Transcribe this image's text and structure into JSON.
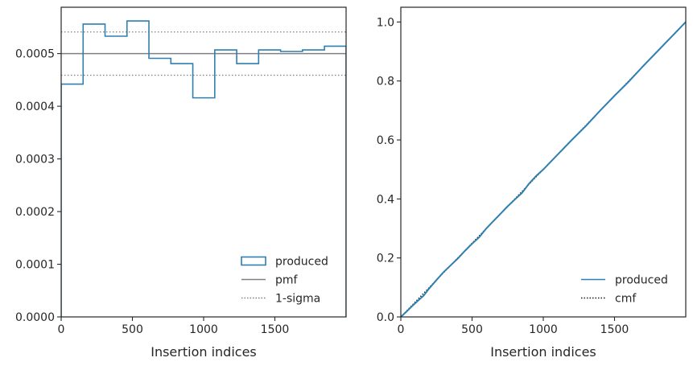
{
  "chart_data": [
    {
      "type": "step",
      "xlabel": "Insertion indices",
      "ylabel": "",
      "xlim": [
        0,
        2000
      ],
      "ylim": [
        0,
        0.000588
      ],
      "x_ticks": [
        0,
        500,
        1000,
        1500
      ],
      "x_tick_labels": [
        "0",
        "500",
        "1000",
        "1500"
      ],
      "y_ticks": [
        0,
        0.0001,
        0.0002,
        0.0003,
        0.0004,
        0.0005
      ],
      "y_tick_labels": [
        "0.0000",
        "0.0001",
        "0.0002",
        "0.0003",
        "0.0004",
        "0.0005"
      ],
      "grid": false,
      "legend_position": "lower-right",
      "bin_edges": [
        0,
        154,
        308,
        462,
        616,
        770,
        924,
        1078,
        1232,
        1386,
        1540,
        1694,
        1848,
        2000
      ],
      "series": [
        {
          "name": "produced",
          "style": "step-outline",
          "color": "#2f7fb0",
          "values": [
            0.000442,
            0.000556,
            0.000533,
            0.000562,
            0.000491,
            0.000481,
            0.000416,
            0.000507,
            0.000481,
            0.000507,
            0.000504,
            0.000507,
            0.000514
          ]
        },
        {
          "name": "pmf",
          "style": "solid-hline",
          "color": "#808080",
          "value": 0.0005
        },
        {
          "name": "1-sigma",
          "style": "dotted-hline",
          "color": "#808080",
          "values": [
            0.000459,
            0.000541
          ]
        }
      ]
    },
    {
      "type": "line",
      "xlabel": "Insertion indices",
      "ylabel": "",
      "xlim": [
        0,
        2000
      ],
      "ylim": [
        0,
        1.05
      ],
      "x_ticks": [
        0,
        500,
        1000,
        1500
      ],
      "x_tick_labels": [
        "0",
        "500",
        "1000",
        "1500"
      ],
      "y_ticks": [
        0,
        0.2,
        0.4,
        0.6,
        0.8,
        1.0
      ],
      "y_tick_labels": [
        "0.0",
        "0.2",
        "0.4",
        "0.6",
        "0.8",
        "1.0"
      ],
      "grid": false,
      "legend_position": "lower-right",
      "series": [
        {
          "name": "produced",
          "style": "solid",
          "color": "#2f7fb0",
          "x": [
            0,
            40,
            80,
            120,
            160,
            200,
            250,
            300,
            350,
            400,
            450,
            500,
            550,
            600,
            650,
            700,
            750,
            800,
            850,
            900,
            950,
            1000,
            1100,
            1200,
            1300,
            1400,
            1500,
            1600,
            1700,
            1800,
            1900,
            2000
          ],
          "y": [
            0,
            0.018,
            0.037,
            0.055,
            0.072,
            0.097,
            0.125,
            0.152,
            0.175,
            0.198,
            0.224,
            0.248,
            0.27,
            0.3,
            0.325,
            0.35,
            0.375,
            0.398,
            0.42,
            0.452,
            0.478,
            0.5,
            0.55,
            0.6,
            0.648,
            0.7,
            0.75,
            0.798,
            0.85,
            0.9,
            0.95,
            1.0
          ]
        },
        {
          "name": "cmf",
          "style": "dotted",
          "color": "#1a1a1a",
          "x": [
            0,
            2000
          ],
          "y": [
            0,
            1.0
          ]
        }
      ]
    }
  ]
}
